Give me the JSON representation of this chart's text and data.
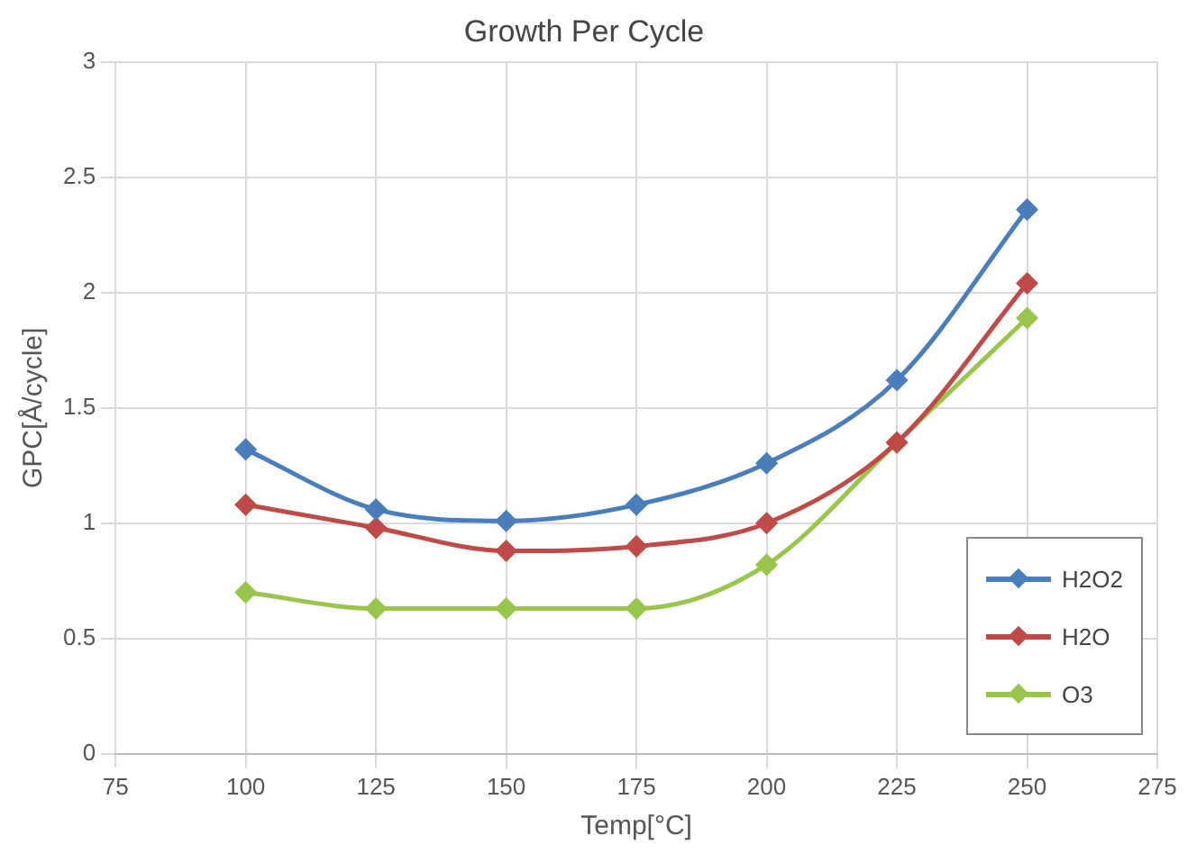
{
  "chart_data": {
    "type": "line",
    "title": "Growth Per Cycle",
    "xlabel": "Temp[°C]",
    "ylabel": "GPC[Å/cycle]",
    "x": [
      100,
      125,
      150,
      175,
      200,
      225,
      250
    ],
    "series": [
      {
        "name": "H2O2",
        "color": "#4a7ebb",
        "values": [
          1.32,
          1.06,
          1.01,
          1.08,
          1.26,
          1.62,
          2.36
        ]
      },
      {
        "name": "H2O",
        "color": "#be4b48",
        "values": [
          1.08,
          0.98,
          0.88,
          0.9,
          1.0,
          1.35,
          2.04
        ]
      },
      {
        "name": "O3",
        "color": "#98c54b",
        "values": [
          0.7,
          0.63,
          0.63,
          0.63,
          0.82,
          1.35,
          1.89
        ]
      }
    ],
    "xlim": [
      75,
      275
    ],
    "xticks": [
      75,
      100,
      125,
      150,
      175,
      200,
      225,
      250,
      275
    ],
    "ylim": [
      0,
      3
    ],
    "yticks": [
      0,
      0.5,
      1,
      1.5,
      2,
      2.5,
      3
    ],
    "grid": true,
    "legend": "bottom right",
    "marker": "diamond",
    "line_style": "solid"
  }
}
